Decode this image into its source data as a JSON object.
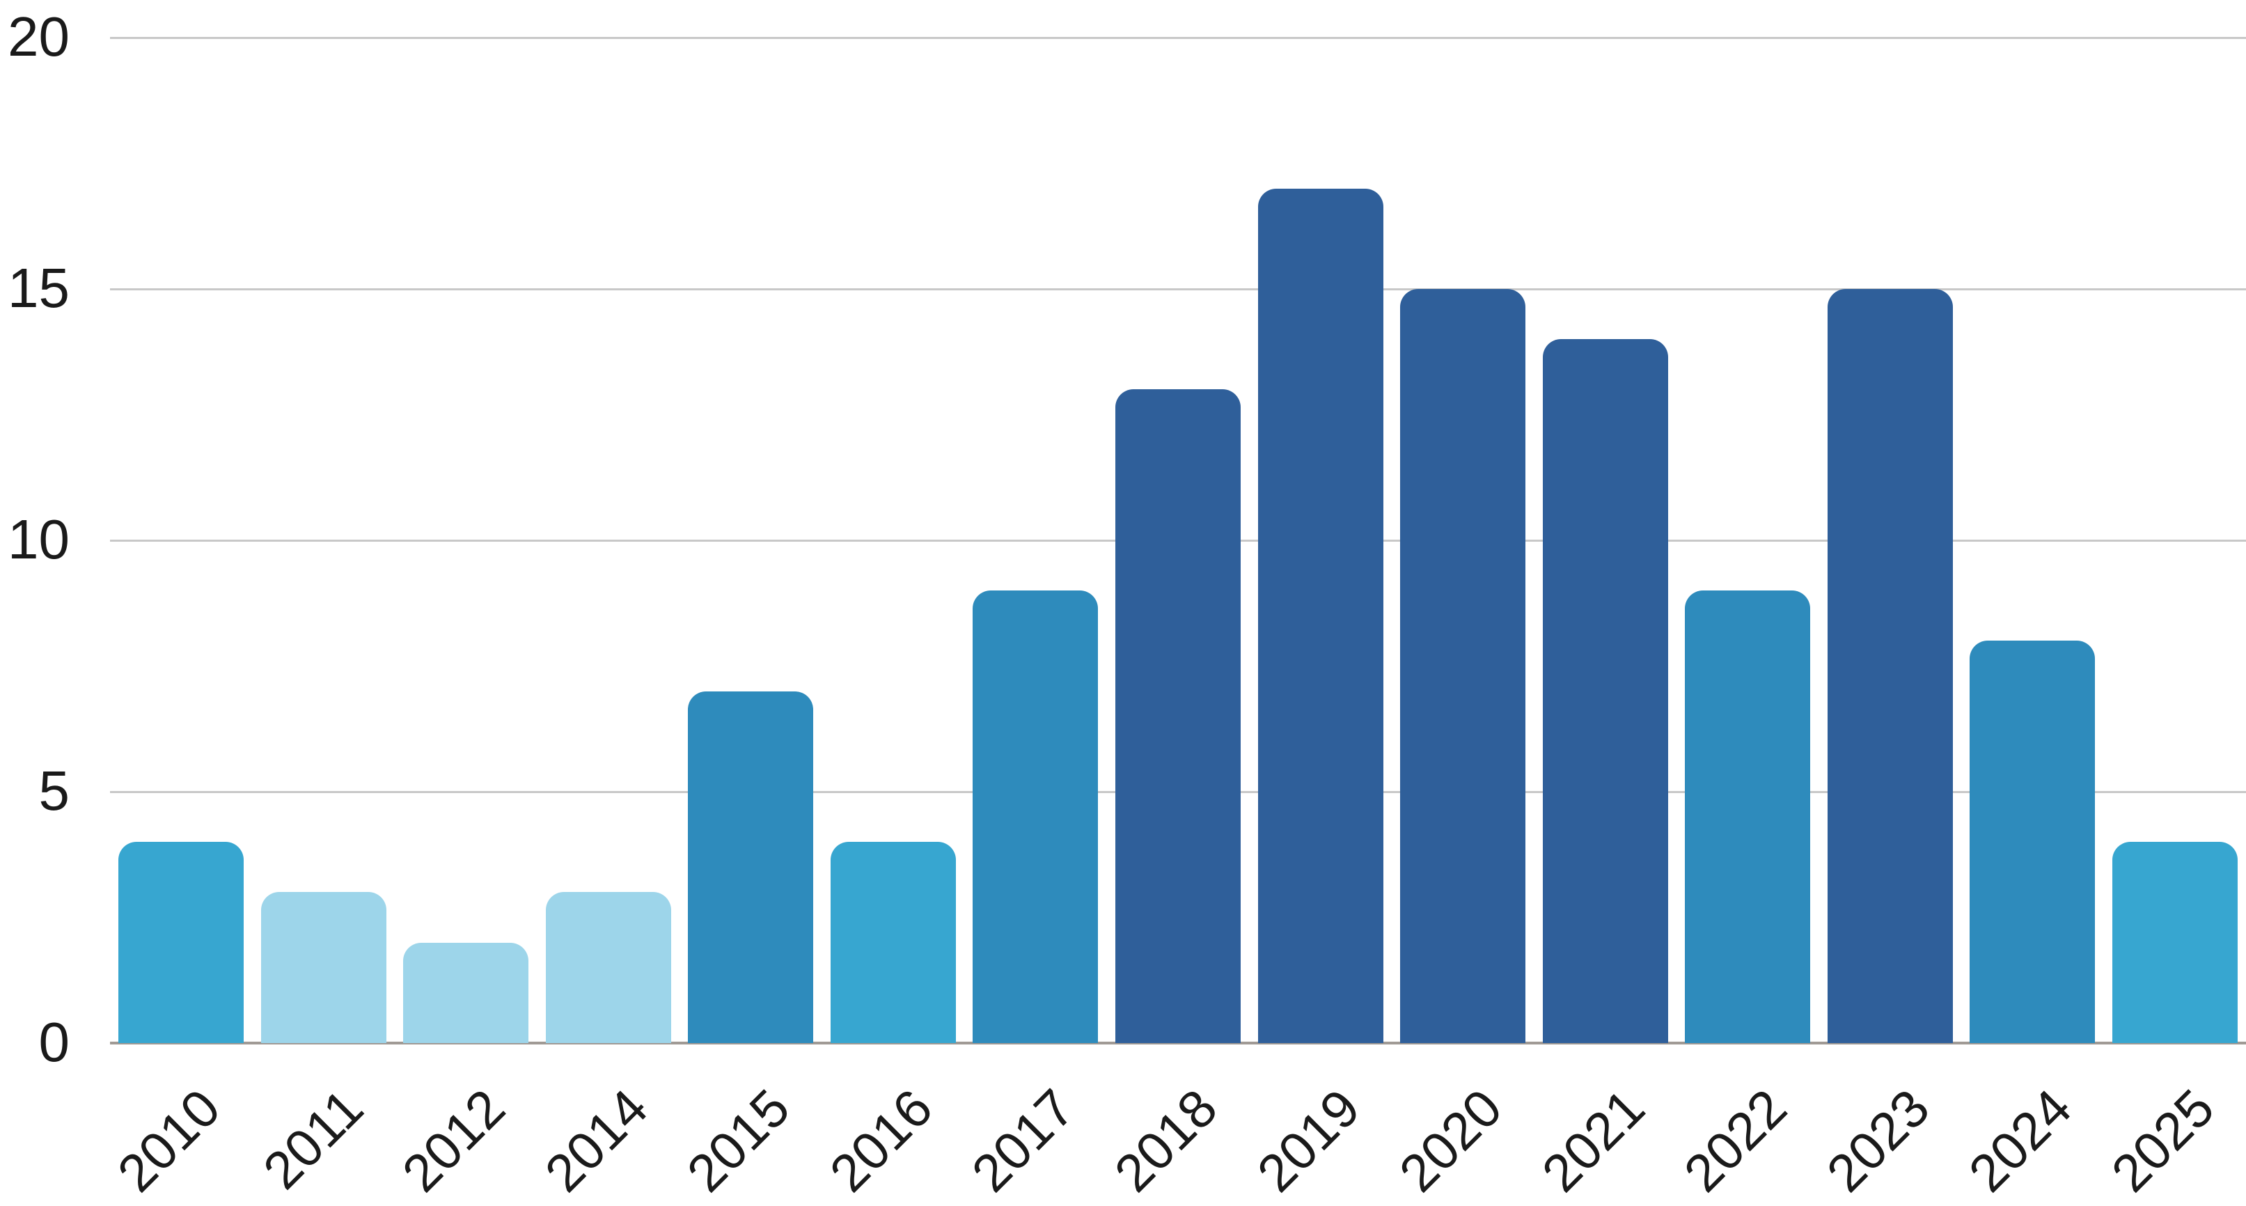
{
  "chart_data": {
    "type": "bar",
    "title": "",
    "xlabel": "",
    "ylabel": "",
    "categories": [
      "2010",
      "2011",
      "2012",
      "2014",
      "2015",
      "2016",
      "2017",
      "2018",
      "2019",
      "2020",
      "2021",
      "2022",
      "2023",
      "2024",
      "2025"
    ],
    "values": [
      4,
      3,
      2,
      3,
      7,
      4,
      9,
      13,
      17,
      15,
      14,
      9,
      15,
      8,
      4
    ],
    "bar_colors": [
      "#37A6D0",
      "#9DD5EA",
      "#9DD5EA",
      "#9DD5EA",
      "#2E8BBC",
      "#37A6D0",
      "#2E8BBC",
      "#2F5F9A",
      "#2F5F9A",
      "#2F5F9A",
      "#2F5F9A",
      "#2E8BBC",
      "#2F5F9A",
      "#2E8BBC",
      "#37A6D0"
    ],
    "palette": {
      "light_blue": "#9DD5EA",
      "bright_blue": "#37A6D0",
      "medium_blue": "#2E8BBC",
      "dark_blue": "#2F5F9A"
    },
    "ylim": [
      0,
      20
    ],
    "yticks": [
      0,
      5,
      10,
      15,
      20
    ],
    "grid": "horizontal",
    "gridline_color": "#C8C8C8",
    "baseline_color": "#A09A95",
    "tick_label_color": "#1A1A1A",
    "background_color": "#FFFFFF",
    "legend": "none",
    "x_tick_rotation_deg": 45
  }
}
